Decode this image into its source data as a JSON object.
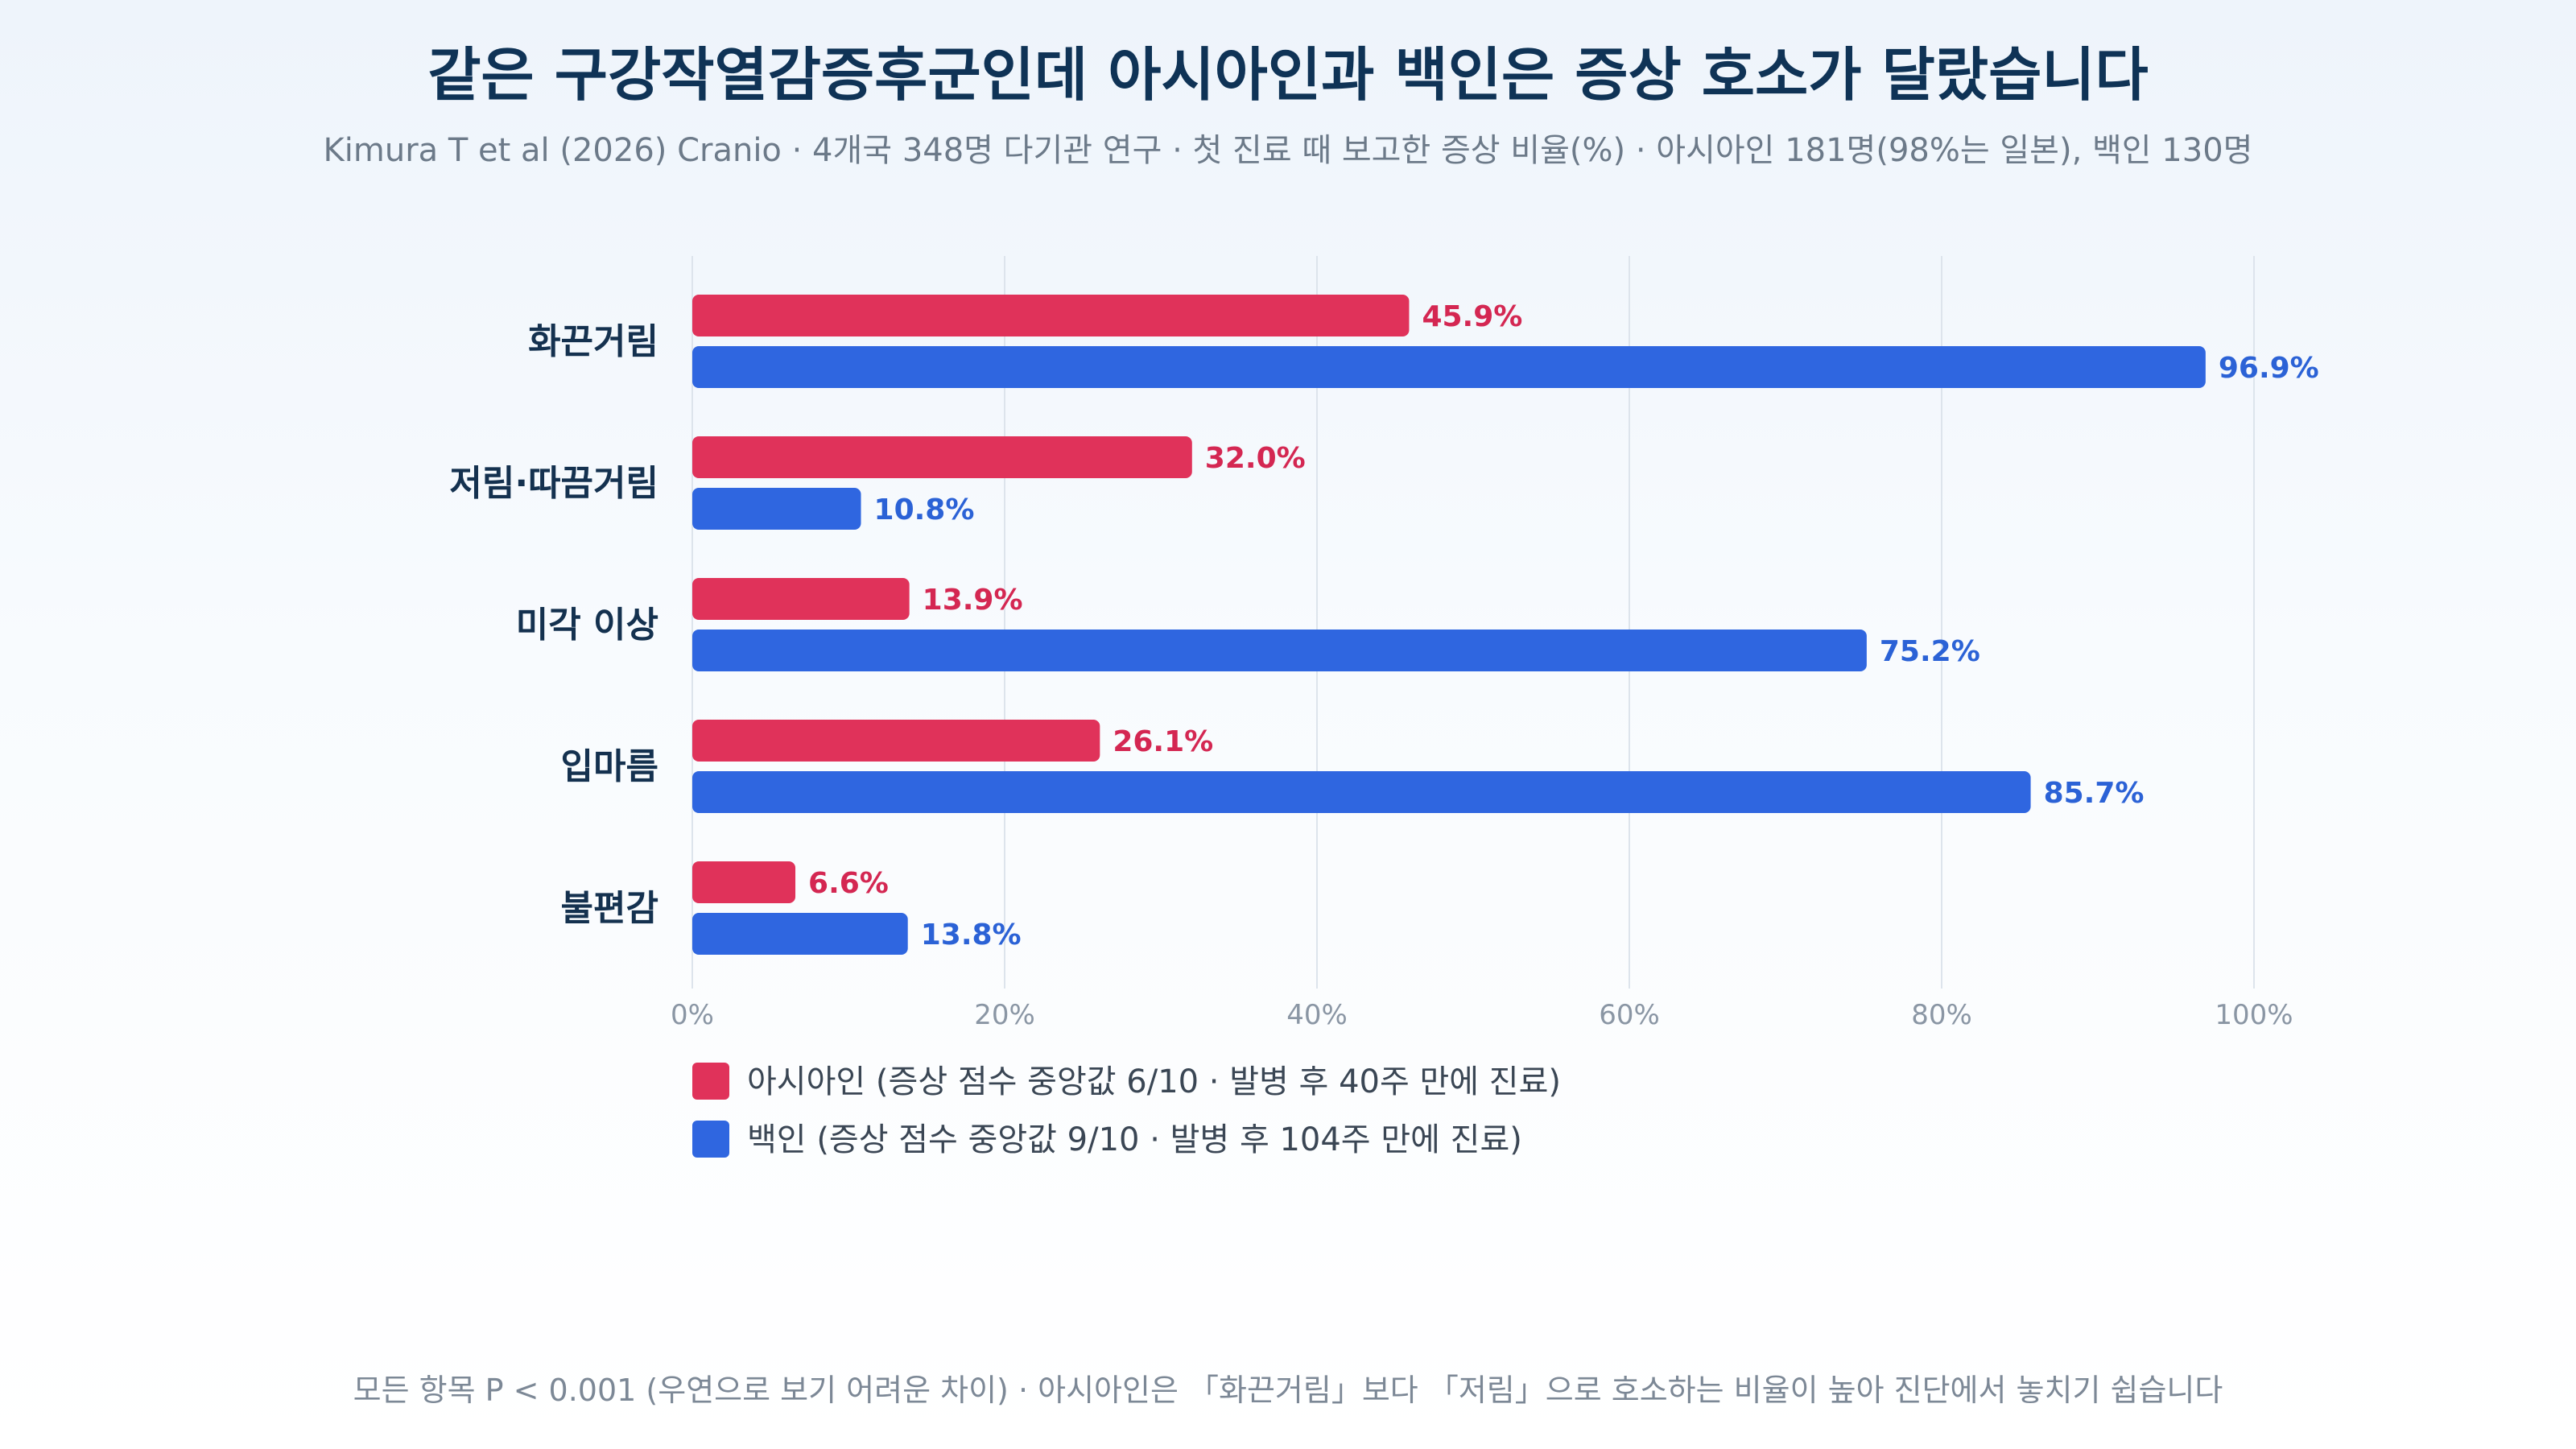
{
  "chart_data": {
    "type": "bar",
    "orientation": "horizontal",
    "title": "같은 구강작열감증후군인데 아시아인과 백인은 증상 호소가 달랐습니다",
    "subtitle": "Kimura T et al (2026) Cranio · 4개국 348명 다기관 연구 · 첫 진료 때 보고한 증상 비율(%) · 아시아인 181명(98%는 일본), 백인 130명",
    "categories": [
      "화끈거림",
      "저림·따끔거림",
      "미각 이상",
      "입마름",
      "불편감"
    ],
    "series": [
      {
        "name": "아시아인 (증상 점수 중앙값 6/10 · 발병 후 40주 만에 진료)",
        "color": "#e0325a",
        "values": [
          45.9,
          32.0,
          13.9,
          26.1,
          6.6
        ],
        "labels": [
          "45.9%",
          "32.0%",
          "13.9%",
          "26.1%",
          "6.6%"
        ]
      },
      {
        "name": "백인 (증상 점수 중앙값 9/10 · 발병 후 104주 만에 진료)",
        "color": "#2f66e0",
        "values": [
          96.9,
          10.8,
          75.2,
          85.7,
          13.8
        ],
        "labels": [
          "96.9%",
          "10.8%",
          "75.2%",
          "85.7%",
          "13.8%"
        ]
      }
    ],
    "xlim": [
      0,
      100
    ],
    "xticks": [
      0,
      20,
      40,
      60,
      80,
      100
    ],
    "xtick_labels": [
      "0%",
      "20%",
      "40%",
      "60%",
      "80%",
      "100%"
    ],
    "grid": true,
    "legend_position": "bottom-left",
    "label_colors": [
      "#d42752",
      "#2b62d6"
    ],
    "footnote": "모든 항목 P < 0.001 (우연으로 보기 어려운 차이) · 아시아인은 「화끈거림」보다 「저림」으로 호소하는 비율이 높아 진단에서 놓치기 쉽습니다"
  }
}
